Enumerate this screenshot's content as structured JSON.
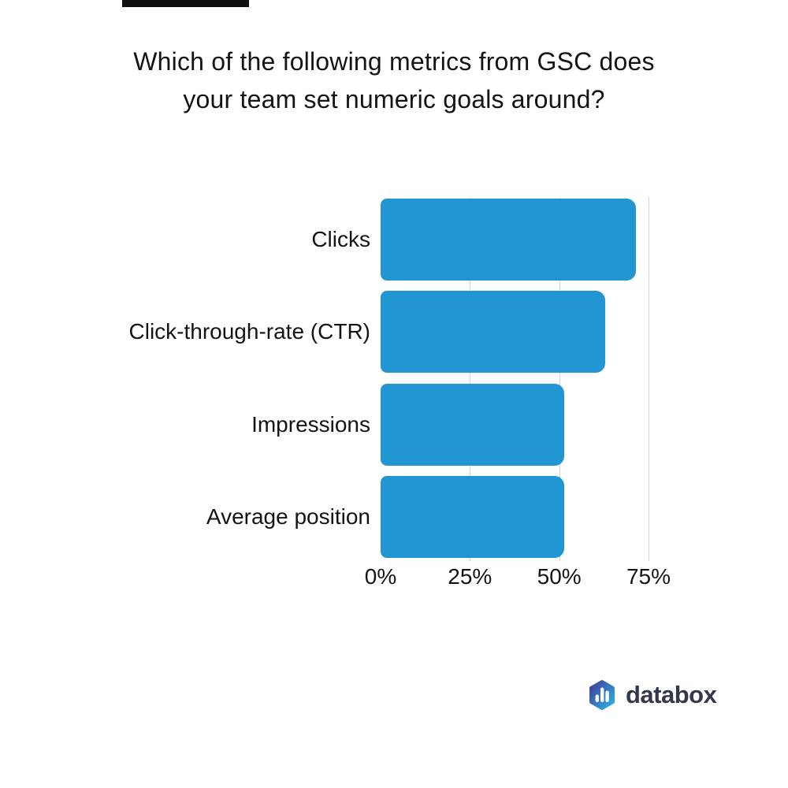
{
  "artifact_bar": {
    "color": "#101010"
  },
  "title": {
    "line1": "Which of the following metrics from GSC does",
    "line2": "your team set numeric goals around?"
  },
  "chart_data": {
    "type": "bar",
    "orientation": "horizontal",
    "title": "Which of the following metrics from GSC does your team set numeric goals around?",
    "categories": [
      "Clicks",
      "Click-through-rate (CTR)",
      "Impressions",
      "Average position"
    ],
    "values": [
      71.4,
      62.9,
      51.4,
      51.4
    ],
    "value_unit": "%",
    "x_ticks": [
      {
        "value": 0,
        "label": "0%"
      },
      {
        "value": 25,
        "label": "25%"
      },
      {
        "value": 50,
        "label": "50%"
      },
      {
        "value": 75,
        "label": "75%"
      }
    ],
    "gridline_values": [
      25,
      50,
      75
    ],
    "xlim": [
      0,
      88
    ],
    "grid": "vertical-only",
    "legend": "none",
    "bar_color": "#2196d3",
    "gridline_color": "#d4d4d4"
  },
  "footer": {
    "logo_text": "databox",
    "logo_gradient_start": "#413d99",
    "logo_gradient_end": "#2cb4e7",
    "logo_text_color": "#333949"
  }
}
